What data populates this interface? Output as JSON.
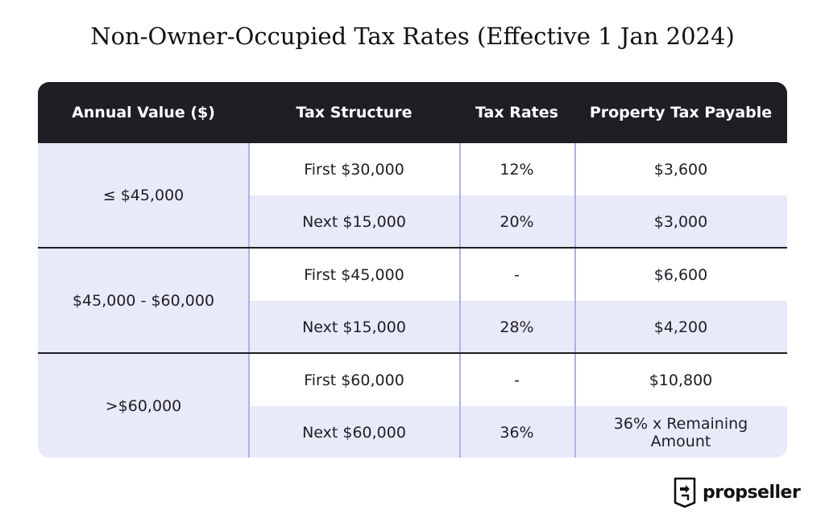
{
  "title": "Non-Owner-Occupied Tax Rates (Effective 1 Jan 2024)",
  "table": {
    "headers": {
      "annual_value": "Annual Value ($)",
      "tax_structure": "Tax Structure",
      "tax_rates": "Tax Rates",
      "property_tax_payable": "Property Tax Payable"
    },
    "groups": [
      {
        "annual_value": "≤ $45,000",
        "rows": [
          {
            "structure": "First $30,000",
            "rate": "12%",
            "payable": "$3,600"
          },
          {
            "structure": "Next $15,000",
            "rate": "20%",
            "payable": "$3,000"
          }
        ]
      },
      {
        "annual_value": "$45,000 - $60,000",
        "rows": [
          {
            "structure": "First $45,000",
            "rate": "-",
            "payable": "$6,600"
          },
          {
            "structure": "Next $15,000",
            "rate": "28%",
            "payable": "$4,200"
          }
        ]
      },
      {
        "annual_value": ">$60,000",
        "rows": [
          {
            "structure": "First $60,000",
            "rate": "-",
            "payable": "$10,800"
          },
          {
            "structure": "Next $60,000",
            "rate": "36%",
            "payable": "36% x Remaining Amount"
          }
        ]
      }
    ]
  },
  "brand": {
    "name": "propseller",
    "logo_icon": "door-exit-icon"
  },
  "colors": {
    "header_bg": "#1f1e25",
    "lavender": "#e9eaf9",
    "divider_blue": "#aab4e6"
  }
}
